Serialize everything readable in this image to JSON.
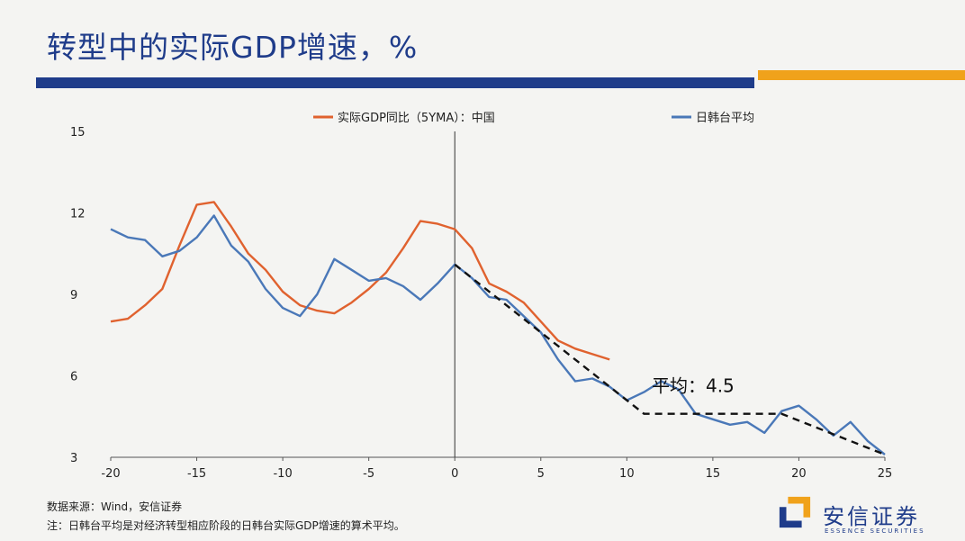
{
  "page": {
    "title": "转型中的实际GDP增速，%",
    "source_note": "数据来源：Wind，安信证券",
    "footnote": "注：日韩台平均是对经济转型相应阶段的日韩台实际GDP增速的算术平均。",
    "logo_text": "安信证券",
    "logo_subtext": "ESSENCE SECURITIES"
  },
  "colors": {
    "title_blue": "#1f3c8a",
    "accent_orange": "#f0a21b",
    "china_series": "#e0622f",
    "jkt_series": "#4a78b8"
  },
  "chart_data": {
    "type": "line",
    "title": "",
    "xlabel": "",
    "ylabel": "",
    "xlim": [
      -20,
      25
    ],
    "ylim": [
      3,
      15
    ],
    "x_ticks": [
      -20,
      -15,
      -10,
      -5,
      0,
      5,
      10,
      15,
      20,
      25
    ],
    "y_ticks": [
      3,
      6,
      9,
      12,
      15
    ],
    "vertical_line_x": 0,
    "grid": false,
    "legend_position": "top",
    "series": [
      {
        "name": "实际GDP同比（5YMA）：中国",
        "color": "#e0622f",
        "points": [
          [
            -20,
            8.0
          ],
          [
            -19,
            8.1
          ],
          [
            -18,
            8.6
          ],
          [
            -17,
            9.2
          ],
          [
            -16,
            10.8
          ],
          [
            -15,
            12.3
          ],
          [
            -14,
            12.4
          ],
          [
            -13,
            11.5
          ],
          [
            -12,
            10.5
          ],
          [
            -11,
            9.9
          ],
          [
            -10,
            9.1
          ],
          [
            -9,
            8.6
          ],
          [
            -8,
            8.4
          ],
          [
            -7,
            8.3
          ],
          [
            -6,
            8.7
          ],
          [
            -5,
            9.2
          ],
          [
            -4,
            9.8
          ],
          [
            -3,
            10.7
          ],
          [
            -2,
            11.7
          ],
          [
            -1,
            11.6
          ],
          [
            0,
            11.4
          ],
          [
            1,
            10.7
          ],
          [
            2,
            9.4
          ],
          [
            3,
            9.1
          ],
          [
            4,
            8.7
          ],
          [
            5,
            8.0
          ],
          [
            6,
            7.3
          ],
          [
            7,
            7.0
          ],
          [
            8,
            6.8
          ],
          [
            9,
            6.6
          ]
        ]
      },
      {
        "name": "日韩台平均",
        "color": "#4a78b8",
        "points": [
          [
            -20,
            11.4
          ],
          [
            -19,
            11.1
          ],
          [
            -18,
            11.0
          ],
          [
            -17,
            10.4
          ],
          [
            -16,
            10.6
          ],
          [
            -15,
            11.1
          ],
          [
            -14,
            11.9
          ],
          [
            -13,
            10.8
          ],
          [
            -12,
            10.2
          ],
          [
            -11,
            9.2
          ],
          [
            -10,
            8.5
          ],
          [
            -9,
            8.2
          ],
          [
            -8,
            9.0
          ],
          [
            -7,
            10.3
          ],
          [
            -6,
            9.9
          ],
          [
            -5,
            9.5
          ],
          [
            -4,
            9.6
          ],
          [
            -3,
            9.3
          ],
          [
            -2,
            8.8
          ],
          [
            -1,
            9.4
          ],
          [
            0,
            10.1
          ],
          [
            1,
            9.6
          ],
          [
            2,
            8.9
          ],
          [
            3,
            8.8
          ],
          [
            4,
            8.2
          ],
          [
            5,
            7.6
          ],
          [
            6,
            6.6
          ],
          [
            7,
            5.8
          ],
          [
            8,
            5.9
          ],
          [
            9,
            5.6
          ],
          [
            10,
            5.1
          ],
          [
            11,
            5.4
          ],
          [
            12,
            5.8
          ],
          [
            13,
            5.5
          ],
          [
            14,
            4.6
          ],
          [
            15,
            4.4
          ],
          [
            16,
            4.2
          ],
          [
            17,
            4.3
          ],
          [
            18,
            3.9
          ],
          [
            19,
            4.7
          ],
          [
            20,
            4.9
          ],
          [
            21,
            4.4
          ],
          [
            22,
            3.8
          ],
          [
            23,
            4.3
          ],
          [
            24,
            3.6
          ],
          [
            25,
            3.1
          ]
        ]
      }
    ],
    "trend_line": {
      "style": "dashed",
      "points": [
        [
          0,
          10.1
        ],
        [
          11,
          4.6
        ],
        [
          19,
          4.6
        ],
        [
          25,
          3.1
        ]
      ]
    },
    "annotation": {
      "text": "平均：4.5",
      "x": 15,
      "y": 5.4
    }
  }
}
